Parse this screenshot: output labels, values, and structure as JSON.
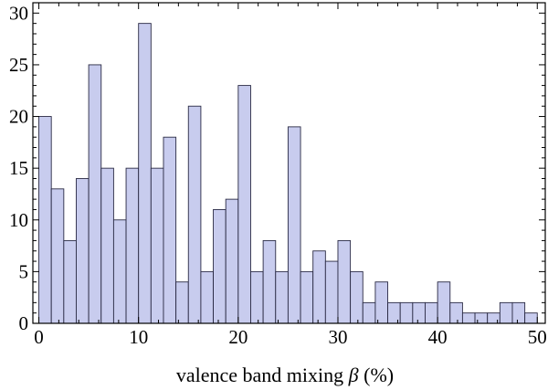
{
  "chart_data": {
    "type": "bar",
    "xlabel_prefix": "valence band mixing ",
    "xlabel_symbol": "β",
    "xlabel_suffix": " (%)",
    "ylabel": "",
    "title": "",
    "xlim": [
      -0.6,
      50.8
    ],
    "ylim": [
      0,
      31
    ],
    "x_ticks": [
      0,
      10,
      20,
      30,
      40,
      50
    ],
    "y_ticks": [
      0,
      5,
      10,
      15,
      20,
      25,
      30
    ],
    "bin_width": 1.25,
    "bin_start": 0,
    "values": [
      20,
      13,
      8,
      14,
      25,
      15,
      10,
      15,
      29,
      15,
      18,
      4,
      21,
      5,
      11,
      12,
      23,
      5,
      8,
      5,
      19,
      5,
      7,
      6,
      8,
      5,
      2,
      4,
      2,
      2,
      2,
      2,
      4,
      2,
      1,
      1,
      1,
      2,
      2,
      1
    ],
    "grid": false,
    "colors": {
      "bar_fill": "#c8ccee",
      "bar_stroke": "#2a2a44"
    }
  }
}
